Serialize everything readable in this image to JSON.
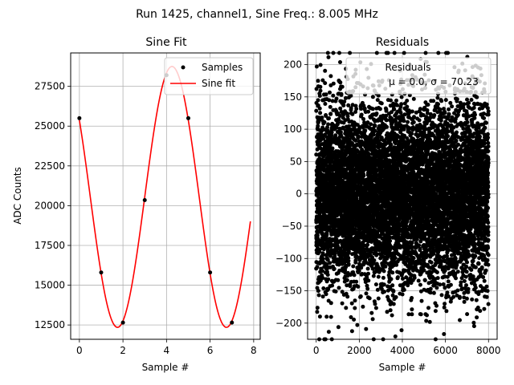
{
  "suptitle": "Run 1425, channel1, Sine Freq.: 8.005 MHz",
  "chart_data": [
    {
      "type": "line",
      "title": "Sine Fit",
      "xlabel": "Sample #",
      "ylabel": "ADC Counts",
      "xlim": [
        -0.4,
        8.3
      ],
      "ylim": [
        11600,
        29600
      ],
      "xticks": [
        0,
        2,
        4,
        6,
        8
      ],
      "yticks": [
        12500,
        15000,
        17500,
        20000,
        22500,
        25000,
        27500
      ],
      "grid": true,
      "legend_position": "top-right",
      "series": [
        {
          "name": "Samples",
          "kind": "scatter",
          "color": "#000000",
          "x": [
            0,
            1,
            2,
            3,
            4,
            5,
            6,
            7
          ],
          "y": [
            25500,
            15800,
            12650,
            20350,
            28200,
            25500,
            15800,
            12650
          ]
        },
        {
          "name": "Sine fit",
          "kind": "line",
          "color": "#ff0000",
          "fit": {
            "amplitude": 8200,
            "offset": 20550,
            "period": 5.0,
            "peak_x": 4.25,
            "x_start": 0,
            "x_end": 7.85
          }
        }
      ]
    },
    {
      "type": "scatter",
      "title": "Residuals",
      "xlabel": "Sample #",
      "ylabel": "",
      "xlim": [
        -400,
        8400
      ],
      "ylim": [
        -225,
        218
      ],
      "xticks": [
        0,
        2000,
        4000,
        6000,
        8000
      ],
      "yticks": [
        -200,
        -150,
        -100,
        -50,
        0,
        50,
        100,
        150,
        200
      ],
      "grid": true,
      "legend_position": "top-right",
      "color": "#000000",
      "sample_count": 8000,
      "mean": 0.0,
      "sigma": 70.23,
      "legend": {
        "title": "Residuals",
        "stats_text": "μ = 0.0, σ = 70.23"
      }
    }
  ]
}
